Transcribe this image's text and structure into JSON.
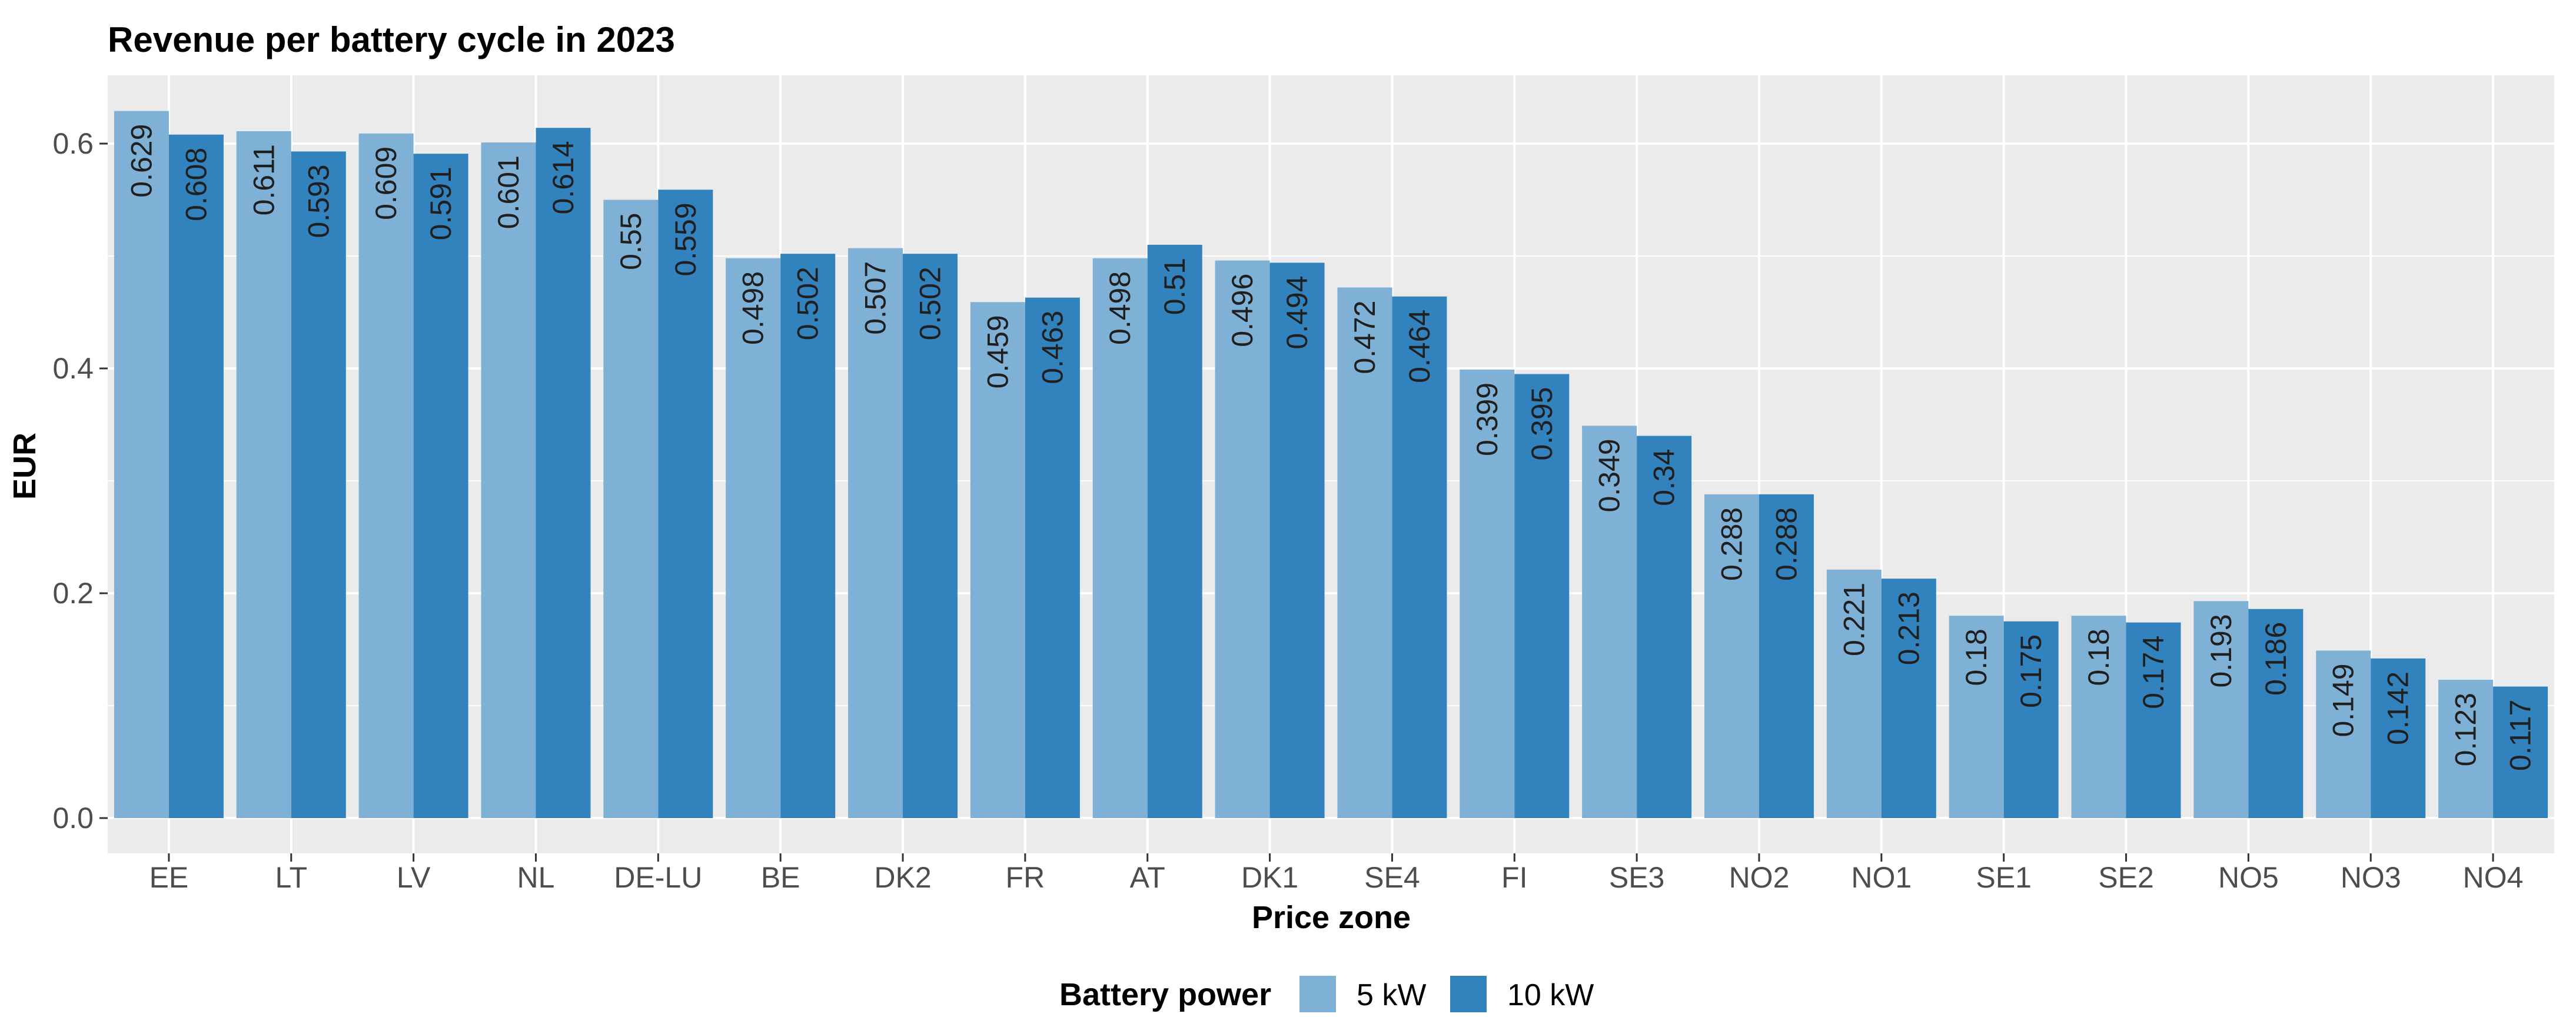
{
  "chart_data": {
    "type": "bar",
    "title": "Revenue per battery cycle in 2023",
    "xlabel": "Price zone",
    "ylabel": "EUR",
    "ylim": [
      0,
      0.66
    ],
    "yticks": [
      0.0,
      0.2,
      0.4,
      0.6
    ],
    "ytick_labels": [
      "0.0",
      "0.2",
      "0.4",
      "0.6"
    ],
    "grid": true,
    "legend_title": "Battery power",
    "legend_position": "bottom",
    "categories": [
      "EE",
      "LT",
      "LV",
      "NL",
      "DE-LU",
      "BE",
      "DK2",
      "FR",
      "AT",
      "DK1",
      "SE4",
      "FI",
      "SE3",
      "NO2",
      "NO1",
      "SE1",
      "SE2",
      "NO5",
      "NO3",
      "NO4"
    ],
    "series": [
      {
        "name": "5 kW",
        "color": "#7fb0d5",
        "values": [
          0.629,
          0.611,
          0.609,
          0.601,
          0.55,
          0.498,
          0.507,
          0.459,
          0.498,
          0.496,
          0.472,
          0.399,
          0.349,
          0.288,
          0.221,
          0.18,
          0.18,
          0.193,
          0.149,
          0.123
        ],
        "labels": [
          "0.629",
          "0.611",
          "0.609",
          "0.601",
          "0.55",
          "0.498",
          "0.507",
          "0.459",
          "0.498",
          "0.496",
          "0.472",
          "0.399",
          "0.349",
          "0.288",
          "0.221",
          "0.18",
          "0.18",
          "0.193",
          "0.149",
          "0.123"
        ]
      },
      {
        "name": "10 kW",
        "color": "#3182bd",
        "values": [
          0.608,
          0.593,
          0.591,
          0.614,
          0.559,
          0.502,
          0.502,
          0.463,
          0.51,
          0.494,
          0.464,
          0.395,
          0.34,
          0.288,
          0.213,
          0.175,
          0.174,
          0.186,
          0.142,
          0.117
        ],
        "labels": [
          "0.608",
          "0.593",
          "0.591",
          "0.614",
          "0.559",
          "0.502",
          "0.502",
          "0.463",
          "0.51",
          "0.494",
          "0.464",
          "0.395",
          "0.34",
          "0.288",
          "0.213",
          "0.175",
          "0.174",
          "0.186",
          "0.142",
          "0.117"
        ]
      }
    ],
    "panel_background": "#ebebeb",
    "grid_color": "#ffffff"
  }
}
